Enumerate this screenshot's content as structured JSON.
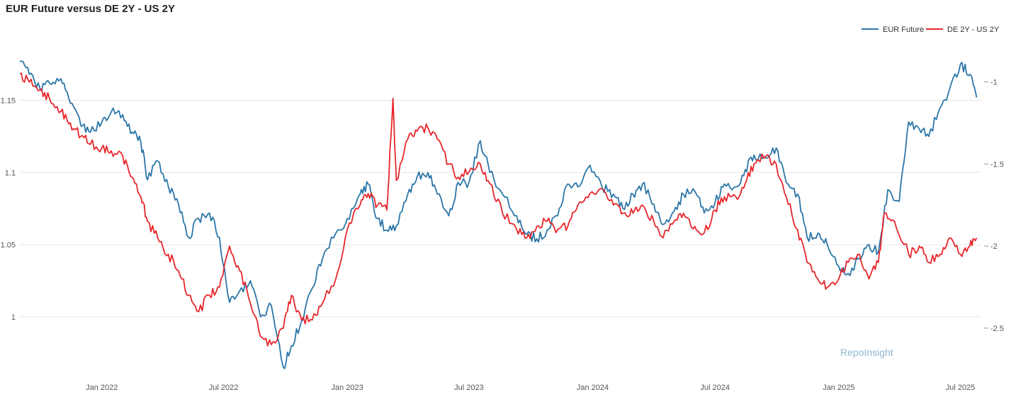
{
  "chart_data": {
    "type": "line",
    "title": "EUR Future versus DE 2Y - US 2Y",
    "watermark": "RepoInsight",
    "legend": {
      "placement": "top-right"
    },
    "grid": true,
    "x_axis": {
      "type": "date",
      "range": [
        "2021-09-01",
        "2025-08-01"
      ],
      "ticks": [
        {
          "date": "2022-01-01",
          "label": "Jan 2022"
        },
        {
          "date": "2022-07-01",
          "label": "Jul 2022"
        },
        {
          "date": "2023-01-01",
          "label": "Jan 2023"
        },
        {
          "date": "2023-07-01",
          "label": "Jul 2023"
        },
        {
          "date": "2024-01-01",
          "label": "Jan 2024"
        },
        {
          "date": "2024-07-01",
          "label": "Jul 2024"
        },
        {
          "date": "2025-01-01",
          "label": "Jan 2025"
        },
        {
          "date": "2025-07-01",
          "label": "Jul 2025"
        }
      ]
    },
    "y_left": {
      "range": [
        0.97,
        1.19
      ],
      "ticks": [
        {
          "value": 1.0,
          "label": "1"
        },
        {
          "value": 1.05,
          "label": "1.05"
        },
        {
          "value": 1.1,
          "label": "1.1"
        },
        {
          "value": 1.15,
          "label": "1.15"
        }
      ]
    },
    "y_right": {
      "range": [
        -2.695,
        -0.76
      ],
      "ticks": [
        {
          "value": -1.0,
          "label": "-1"
        },
        {
          "value": -1.5,
          "label": "-1.5"
        },
        {
          "value": -2.0,
          "label": "-2"
        },
        {
          "value": -2.5,
          "label": "-2.5"
        }
      ]
    },
    "series": [
      {
        "name": "EUR Future",
        "axis": "left",
        "color": "#2b76a8",
        "points": [
          [
            "2021-09-01",
            1.177
          ],
          [
            "2021-09-15",
            1.168
          ],
          [
            "2021-10-01",
            1.158
          ],
          [
            "2021-10-15",
            1.162
          ],
          [
            "2021-11-01",
            1.165
          ],
          [
            "2021-11-15",
            1.148
          ],
          [
            "2021-12-01",
            1.132
          ],
          [
            "2021-12-15",
            1.128
          ],
          [
            "2022-01-01",
            1.135
          ],
          [
            "2022-01-15",
            1.142
          ],
          [
            "2022-02-01",
            1.14
          ],
          [
            "2022-02-15",
            1.128
          ],
          [
            "2022-02-28",
            1.121
          ],
          [
            "2022-03-10",
            1.095
          ],
          [
            "2022-03-25",
            1.108
          ],
          [
            "2022-04-10",
            1.09
          ],
          [
            "2022-04-25",
            1.078
          ],
          [
            "2022-05-10",
            1.055
          ],
          [
            "2022-05-25",
            1.068
          ],
          [
            "2022-06-10",
            1.072
          ],
          [
            "2022-06-25",
            1.055
          ],
          [
            "2022-07-10",
            1.01
          ],
          [
            "2022-07-25",
            1.018
          ],
          [
            "2022-08-10",
            1.025
          ],
          [
            "2022-08-25",
            1.0
          ],
          [
            "2022-09-10",
            1.008
          ],
          [
            "2022-09-28",
            0.965
          ],
          [
            "2022-10-10",
            0.98
          ],
          [
            "2022-10-25",
            0.997
          ],
          [
            "2022-11-10",
            1.02
          ],
          [
            "2022-11-25",
            1.04
          ],
          [
            "2022-12-15",
            1.058
          ],
          [
            "2023-01-01",
            1.068
          ],
          [
            "2023-01-20",
            1.085
          ],
          [
            "2023-02-01",
            1.092
          ],
          [
            "2023-02-15",
            1.068
          ],
          [
            "2023-03-01",
            1.06
          ],
          [
            "2023-03-15",
            1.063
          ],
          [
            "2023-04-01",
            1.085
          ],
          [
            "2023-04-15",
            1.097
          ],
          [
            "2023-05-01",
            1.1
          ],
          [
            "2023-05-15",
            1.085
          ],
          [
            "2023-06-01",
            1.07
          ],
          [
            "2023-06-15",
            1.093
          ],
          [
            "2023-07-01",
            1.093
          ],
          [
            "2023-07-18",
            1.122
          ],
          [
            "2023-08-01",
            1.1
          ],
          [
            "2023-08-20",
            1.085
          ],
          [
            "2023-09-10",
            1.07
          ],
          [
            "2023-09-25",
            1.057
          ],
          [
            "2023-10-10",
            1.054
          ],
          [
            "2023-10-25",
            1.06
          ],
          [
            "2023-11-10",
            1.07
          ],
          [
            "2023-11-25",
            1.092
          ],
          [
            "2023-12-10",
            1.09
          ],
          [
            "2023-12-28",
            1.105
          ],
          [
            "2024-01-15",
            1.09
          ],
          [
            "2024-02-01",
            1.085
          ],
          [
            "2024-02-15",
            1.075
          ],
          [
            "2024-03-01",
            1.085
          ],
          [
            "2024-03-15",
            1.092
          ],
          [
            "2024-04-01",
            1.078
          ],
          [
            "2024-04-15",
            1.064
          ],
          [
            "2024-05-01",
            1.073
          ],
          [
            "2024-05-15",
            1.085
          ],
          [
            "2024-06-01",
            1.087
          ],
          [
            "2024-06-15",
            1.072
          ],
          [
            "2024-07-01",
            1.079
          ],
          [
            "2024-07-15",
            1.092
          ],
          [
            "2024-08-01",
            1.09
          ],
          [
            "2024-08-15",
            1.102
          ],
          [
            "2024-08-28",
            1.112
          ],
          [
            "2024-09-15",
            1.11
          ],
          [
            "2024-09-30",
            1.117
          ],
          [
            "2024-10-15",
            1.093
          ],
          [
            "2024-11-01",
            1.085
          ],
          [
            "2024-11-15",
            1.055
          ],
          [
            "2024-12-01",
            1.058
          ],
          [
            "2024-12-15",
            1.05
          ],
          [
            "2025-01-01",
            1.035
          ],
          [
            "2025-01-15",
            1.03
          ],
          [
            "2025-02-01",
            1.04
          ],
          [
            "2025-02-15",
            1.05
          ],
          [
            "2025-03-01",
            1.045
          ],
          [
            "2025-03-15",
            1.088
          ],
          [
            "2025-04-01",
            1.08
          ],
          [
            "2025-04-15",
            1.135
          ],
          [
            "2025-05-01",
            1.13
          ],
          [
            "2025-05-15",
            1.125
          ],
          [
            "2025-06-01",
            1.145
          ],
          [
            "2025-06-15",
            1.158
          ],
          [
            "2025-07-01",
            1.175
          ],
          [
            "2025-07-15",
            1.168
          ],
          [
            "2025-07-25",
            1.152
          ]
        ]
      },
      {
        "name": "DE 2Y - US 2Y",
        "axis": "right",
        "color": "#e8262b",
        "points": [
          [
            "2021-09-01",
            -0.95
          ],
          [
            "2021-09-15",
            -1.0
          ],
          [
            "2021-10-01",
            -1.05
          ],
          [
            "2021-10-15",
            -1.1
          ],
          [
            "2021-11-01",
            -1.18
          ],
          [
            "2021-11-15",
            -1.25
          ],
          [
            "2021-12-01",
            -1.33
          ],
          [
            "2021-12-15",
            -1.38
          ],
          [
            "2022-01-01",
            -1.4
          ],
          [
            "2022-01-15",
            -1.42
          ],
          [
            "2022-02-01",
            -1.45
          ],
          [
            "2022-02-15",
            -1.58
          ],
          [
            "2022-02-28",
            -1.7
          ],
          [
            "2022-03-10",
            -1.85
          ],
          [
            "2022-03-25",
            -1.95
          ],
          [
            "2022-04-10",
            -2.05
          ],
          [
            "2022-04-25",
            -2.15
          ],
          [
            "2022-05-10",
            -2.3
          ],
          [
            "2022-05-25",
            -2.4
          ],
          [
            "2022-06-10",
            -2.3
          ],
          [
            "2022-06-25",
            -2.25
          ],
          [
            "2022-07-10",
            -2.0
          ],
          [
            "2022-07-25",
            -2.15
          ],
          [
            "2022-08-10",
            -2.35
          ],
          [
            "2022-08-25",
            -2.55
          ],
          [
            "2022-09-10",
            -2.6
          ],
          [
            "2022-09-28",
            -2.5
          ],
          [
            "2022-10-10",
            -2.3
          ],
          [
            "2022-10-25",
            -2.45
          ],
          [
            "2022-11-10",
            -2.45
          ],
          [
            "2022-11-25",
            -2.35
          ],
          [
            "2022-12-15",
            -2.2
          ],
          [
            "2023-01-01",
            -1.9
          ],
          [
            "2023-01-20",
            -1.75
          ],
          [
            "2023-02-01",
            -1.68
          ],
          [
            "2023-02-15",
            -1.75
          ],
          [
            "2023-03-01",
            -1.78
          ],
          [
            "2023-03-10",
            -1.1
          ],
          [
            "2023-03-15",
            -1.6
          ],
          [
            "2023-04-01",
            -1.35
          ],
          [
            "2023-04-15",
            -1.3
          ],
          [
            "2023-05-01",
            -1.28
          ],
          [
            "2023-05-15",
            -1.35
          ],
          [
            "2023-06-01",
            -1.5
          ],
          [
            "2023-06-15",
            -1.58
          ],
          [
            "2023-07-01",
            -1.55
          ],
          [
            "2023-07-18",
            -1.5
          ],
          [
            "2023-08-01",
            -1.62
          ],
          [
            "2023-08-20",
            -1.8
          ],
          [
            "2023-09-10",
            -1.9
          ],
          [
            "2023-09-25",
            -1.95
          ],
          [
            "2023-10-10",
            -1.88
          ],
          [
            "2023-10-25",
            -1.85
          ],
          [
            "2023-11-10",
            -1.9
          ],
          [
            "2023-11-25",
            -1.88
          ],
          [
            "2023-12-10",
            -1.75
          ],
          [
            "2023-12-28",
            -1.68
          ],
          [
            "2024-01-15",
            -1.65
          ],
          [
            "2024-02-01",
            -1.75
          ],
          [
            "2024-02-15",
            -1.8
          ],
          [
            "2024-03-01",
            -1.8
          ],
          [
            "2024-03-15",
            -1.75
          ],
          [
            "2024-04-01",
            -1.85
          ],
          [
            "2024-04-15",
            -1.95
          ],
          [
            "2024-05-01",
            -1.85
          ],
          [
            "2024-05-15",
            -1.8
          ],
          [
            "2024-06-01",
            -1.88
          ],
          [
            "2024-06-15",
            -1.92
          ],
          [
            "2024-07-01",
            -1.78
          ],
          [
            "2024-07-15",
            -1.7
          ],
          [
            "2024-08-01",
            -1.7
          ],
          [
            "2024-08-15",
            -1.62
          ],
          [
            "2024-08-28",
            -1.5
          ],
          [
            "2024-09-15",
            -1.45
          ],
          [
            "2024-09-30",
            -1.5
          ],
          [
            "2024-10-15",
            -1.7
          ],
          [
            "2024-11-01",
            -1.9
          ],
          [
            "2024-11-15",
            -2.1
          ],
          [
            "2024-12-01",
            -2.2
          ],
          [
            "2024-12-15",
            -2.25
          ],
          [
            "2025-01-01",
            -2.2
          ],
          [
            "2025-01-15",
            -2.1
          ],
          [
            "2025-02-01",
            -2.05
          ],
          [
            "2025-02-15",
            -2.2
          ],
          [
            "2025-03-01",
            -2.1
          ],
          [
            "2025-03-10",
            -1.8
          ],
          [
            "2025-03-25",
            -1.85
          ],
          [
            "2025-04-15",
            -2.05
          ],
          [
            "2025-05-01",
            -2.0
          ],
          [
            "2025-05-15",
            -2.1
          ],
          [
            "2025-06-01",
            -2.05
          ],
          [
            "2025-06-15",
            -1.95
          ],
          [
            "2025-07-01",
            -2.05
          ],
          [
            "2025-07-15",
            -2.0
          ],
          [
            "2025-07-25",
            -1.95
          ]
        ]
      }
    ]
  }
}
